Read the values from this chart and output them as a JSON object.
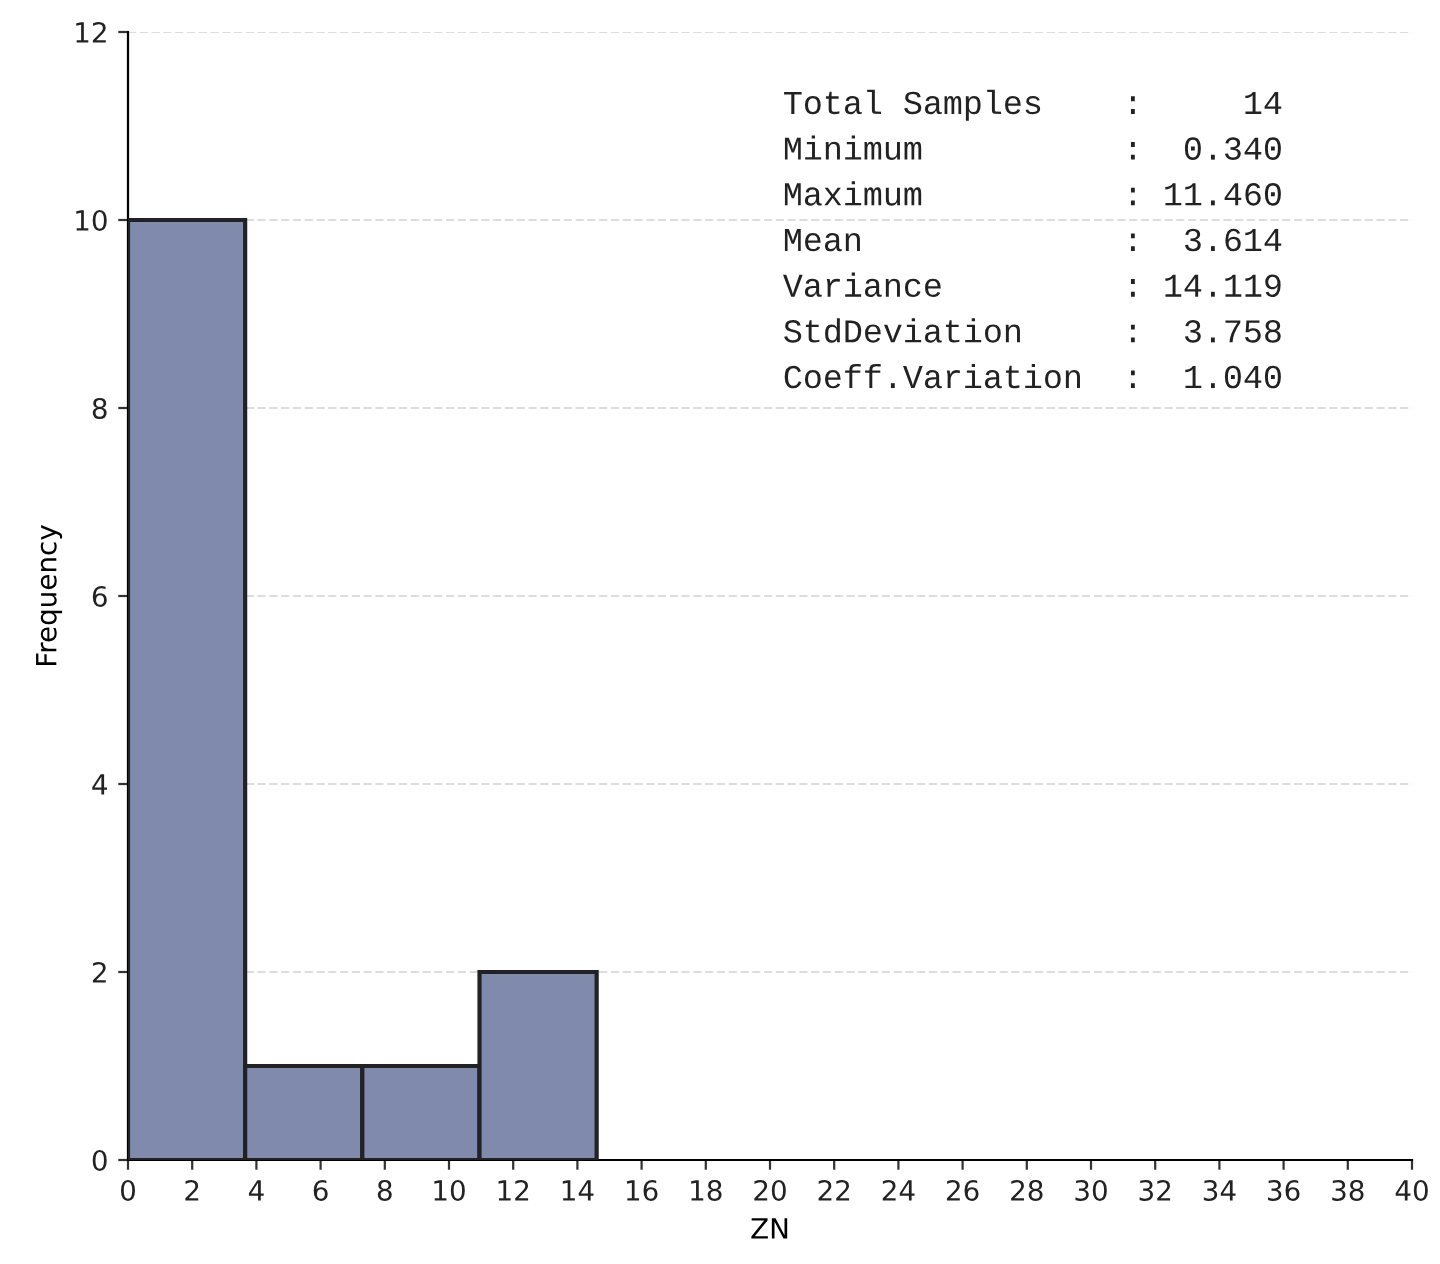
{
  "chart_data": {
    "type": "histogram",
    "xlabel": "ZN",
    "ylabel": "Frequency",
    "bins": [
      0,
      3.65,
      7.3,
      10.95,
      14.6
    ],
    "values": [
      10,
      1,
      1,
      2
    ],
    "color": "#7f8aad",
    "xlim": [
      0,
      40
    ],
    "xticks": [
      0,
      2,
      4,
      6,
      8,
      10,
      12,
      14,
      16,
      18,
      20,
      22,
      24,
      26,
      28,
      30,
      32,
      34,
      36,
      38,
      40
    ],
    "ylim": [
      0,
      12
    ],
    "yticks": [
      0,
      2,
      4,
      6,
      8,
      10,
      12
    ],
    "grid": "y",
    "annotations": [
      "Total Samples    :     14",
      "Minimum          :  0.340",
      "Maximum          : 11.460",
      "Mean             :  3.614",
      "Variance         : 14.119",
      "StdDeviation     :  3.758",
      "Coeff.Variation  :  1.040"
    ]
  }
}
